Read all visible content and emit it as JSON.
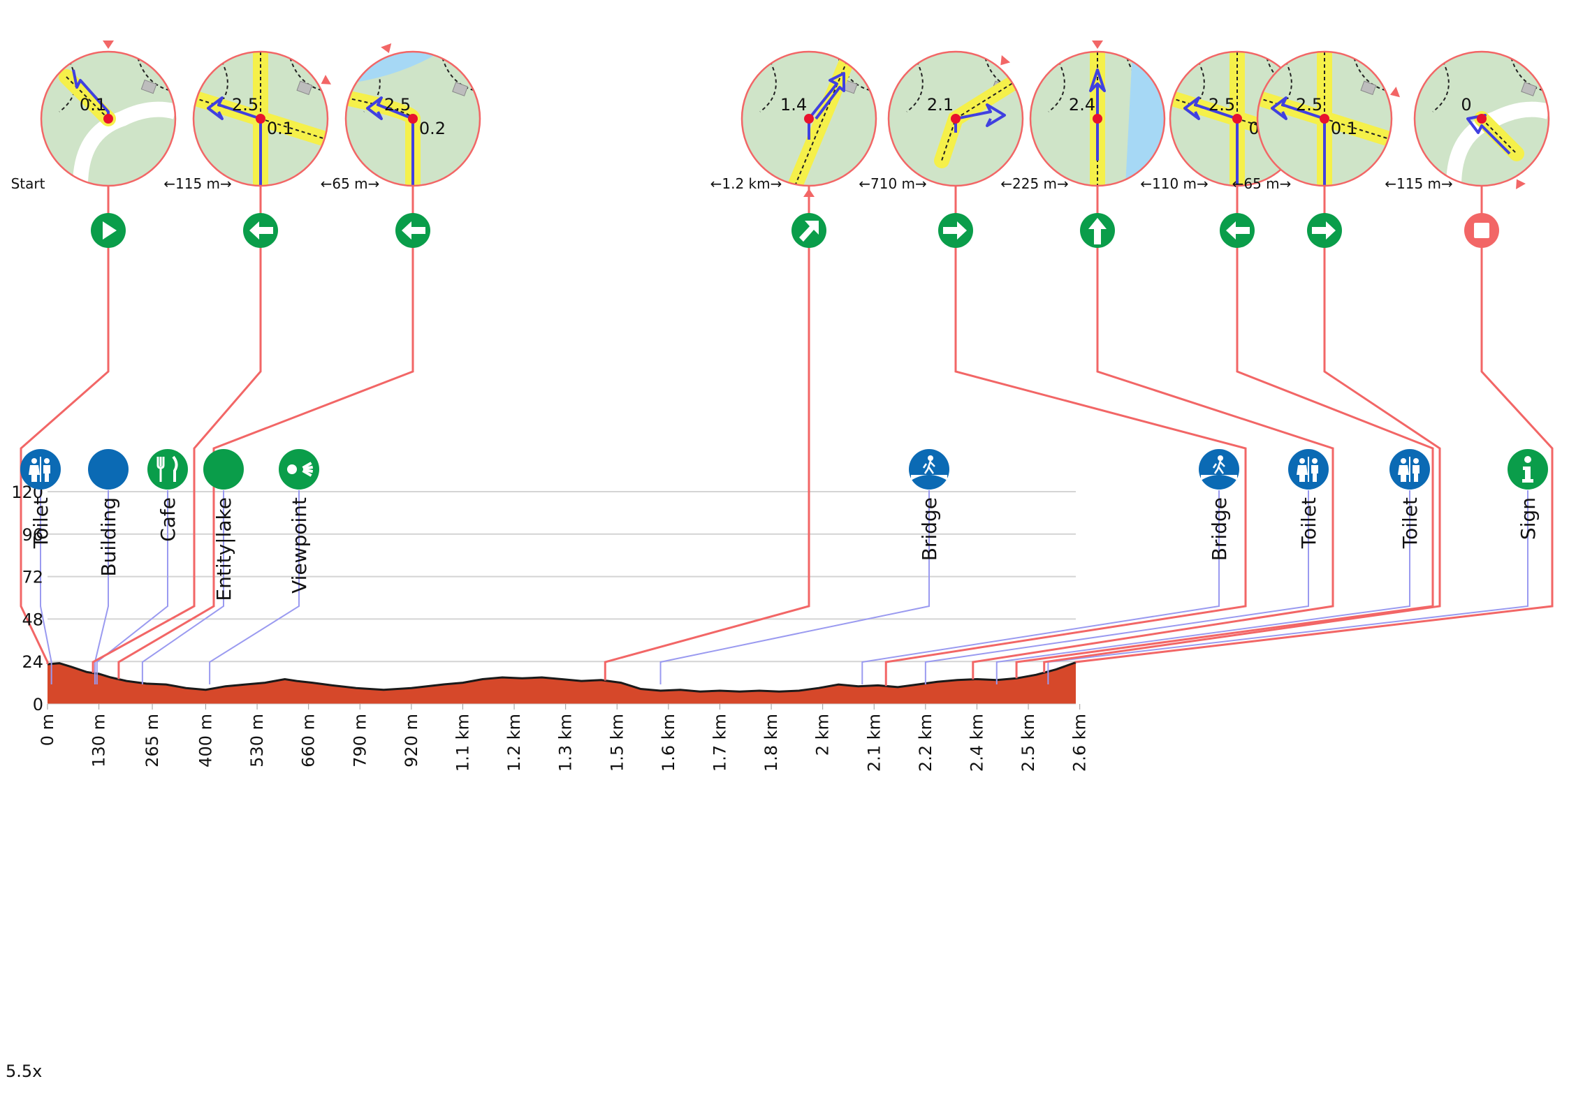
{
  "zoom": "5.5x",
  "start_label": "Start",
  "colors": {
    "profile_fill": "#d6482a",
    "profile_stroke": "#1a1a1a",
    "turn_line": "#f26666",
    "poi_line": "#9a9af0",
    "turn_icon": "#0a9d4a",
    "end_icon": "#f26666",
    "poi_blue": "#0b6ab4",
    "poi_green": "#0a9d4a",
    "map_bg": "#cfe4c8",
    "route_highlight": "#f5f04a",
    "route_arrow": "#4040e0",
    "water": "#a6d8f5"
  },
  "chart_data": {
    "type": "area",
    "x_unit": "km",
    "xlim": [
      0,
      2.6
    ],
    "ylim": [
      0,
      120
    ],
    "y_ticks": [
      0,
      24,
      48,
      72,
      96,
      120
    ],
    "y_tick_labels": [
      "0",
      "24",
      "48",
      "72",
      "96",
      "120"
    ],
    "x_ticks": [
      0,
      0.13,
      0.265,
      0.4,
      0.53,
      0.66,
      0.79,
      0.92,
      1.05,
      1.18,
      1.31,
      1.44,
      1.57,
      1.7,
      1.83,
      1.96,
      2.09,
      2.22,
      2.35,
      2.48,
      2.61
    ],
    "x_tick_labels": [
      "0 m",
      "130 m",
      "265 m",
      "400 m",
      "530 m",
      "660 m",
      "790 m",
      "920 m",
      "1.1 km",
      "1.2 km",
      "1.3 km",
      "1.5 km",
      "1.6 km",
      "1.7 km",
      "1.8 km",
      "2 km",
      "2.1 km",
      "2.2 km",
      "2.4 km",
      "2.5 km",
      "2.6 km"
    ],
    "grid": true,
    "elevation": {
      "x": [
        0,
        0.03,
        0.06,
        0.1,
        0.13,
        0.16,
        0.2,
        0.25,
        0.3,
        0.35,
        0.4,
        0.45,
        0.5,
        0.55,
        0.6,
        0.63,
        0.67,
        0.72,
        0.78,
        0.85,
        0.92,
        1.0,
        1.05,
        1.1,
        1.15,
        1.2,
        1.25,
        1.3,
        1.35,
        1.4,
        1.45,
        1.5,
        1.55,
        1.6,
        1.65,
        1.7,
        1.75,
        1.8,
        1.85,
        1.9,
        1.95,
        2.0,
        2.05,
        2.1,
        2.15,
        2.2,
        2.25,
        2.3,
        2.35,
        2.4,
        2.45,
        2.5,
        2.55,
        2.6
      ],
      "y": [
        22.5,
        23,
        21,
        18,
        17,
        15,
        13,
        11.5,
        11,
        9,
        8,
        10,
        11,
        12,
        14,
        13,
        12,
        10.5,
        9,
        8,
        9,
        11,
        12,
        14,
        15,
        14.5,
        15,
        14,
        13,
        13.5,
        12,
        8.5,
        7.5,
        8,
        7,
        7.5,
        7,
        7.5,
        7,
        7.5,
        9,
        11,
        10,
        10.5,
        9.5,
        11,
        12.5,
        13.5,
        14,
        13.5,
        14.5,
        16.5,
        19.5,
        23.5
      ]
    },
    "turns": [
      {
        "x": 0.0,
        "icon": "play-icon",
        "distance": "Start",
        "map_labels": [
          "0.1"
        ],
        "map_kind": "start"
      },
      {
        "x": 0.115,
        "icon": "arrow-left-icon",
        "distance": "←115 m→",
        "map_labels": [
          "2.5",
          "0.1"
        ],
        "map_kind": "crossing"
      },
      {
        "x": 0.18,
        "icon": "arrow-left-icon",
        "distance": "←65 m→",
        "map_labels": [
          "2.5",
          "0.2"
        ],
        "map_kind": "tee"
      },
      {
        "x": 1.41,
        "icon": "arrow-bear-right-icon",
        "distance": "←1.2 km→",
        "map_labels": [
          "1.4"
        ],
        "map_kind": "straight"
      },
      {
        "x": 2.12,
        "icon": "arrow-right-icon",
        "distance": "←710 m→",
        "map_labels": [
          "2.1"
        ],
        "map_kind": "junction"
      },
      {
        "x": 2.34,
        "icon": "arrow-up-icon",
        "distance": "←225 m→",
        "map_labels": [
          "2.4"
        ],
        "map_kind": "straight"
      },
      {
        "x": 2.45,
        "icon": "arrow-left-icon",
        "distance": "←110 m→",
        "map_labels": [
          "2.5",
          "0."
        ],
        "map_kind": "crossing"
      },
      {
        "x": 2.52,
        "icon": "arrow-right-icon",
        "distance": "←65 m→",
        "map_labels": [
          "2.5",
          "0.1"
        ],
        "map_kind": "crossing"
      },
      {
        "x": 2.6,
        "icon": "stop-icon",
        "distance": "←115 m→",
        "map_labels": [
          "0"
        ],
        "map_kind": "finish"
      }
    ],
    "pois": [
      {
        "x": 0.01,
        "label": "Toilet",
        "icon": "toilet-icon"
      },
      {
        "x": 0.12,
        "label": "Building",
        "icon": "building-icon"
      },
      {
        "x": 0.125,
        "label": "Cafe",
        "icon": "cafe-icon"
      },
      {
        "x": 0.24,
        "label": "Entity|lake",
        "icon": "lake-icon"
      },
      {
        "x": 0.41,
        "label": "Viewpoint",
        "icon": "viewpoint-icon"
      },
      {
        "x": 1.55,
        "label": "Bridge",
        "icon": "bridge-icon"
      },
      {
        "x": 2.06,
        "label": "Bridge",
        "icon": "bridge-icon"
      },
      {
        "x": 2.22,
        "label": "Toilet",
        "icon": "toilet-icon"
      },
      {
        "x": 2.4,
        "label": "Toilet",
        "icon": "toilet-icon"
      },
      {
        "x": 2.53,
        "label": "Sign",
        "icon": "info-icon"
      }
    ]
  }
}
